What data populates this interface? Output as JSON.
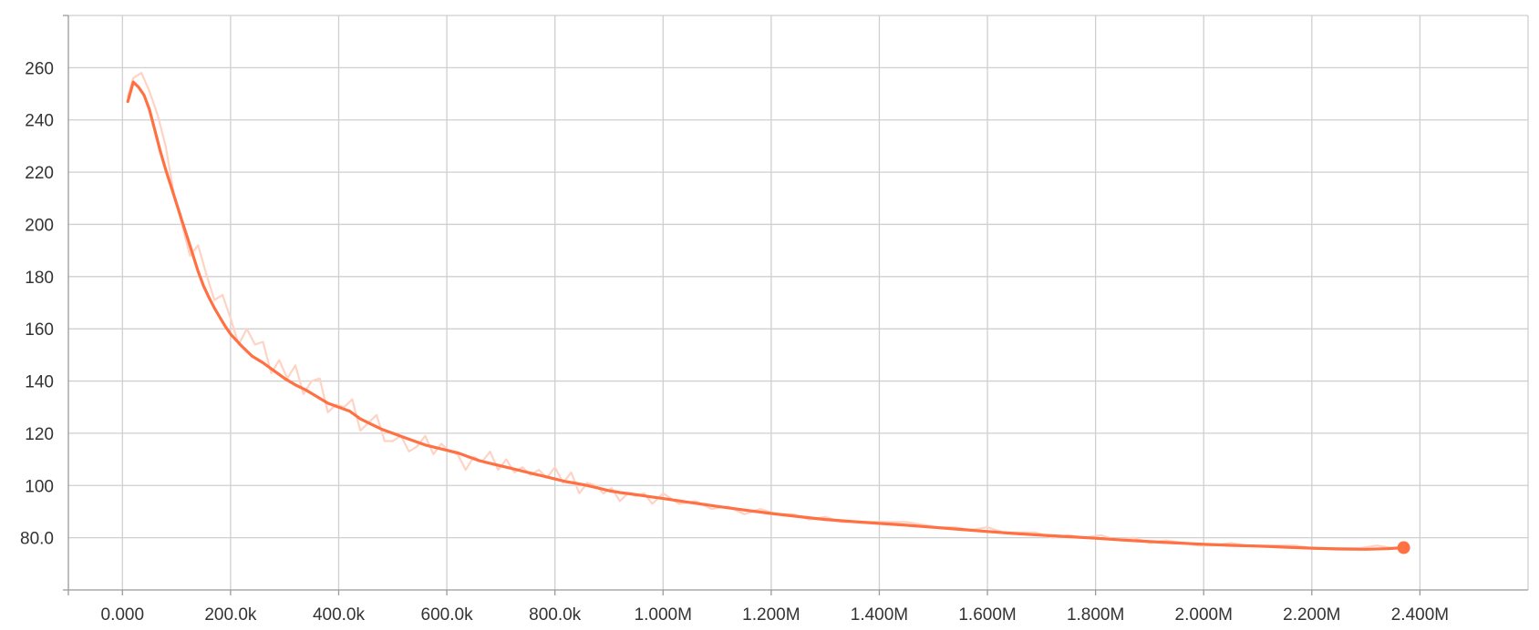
{
  "chart_data": {
    "type": "line",
    "title": "",
    "xlabel": "",
    "ylabel": "",
    "xlim": [
      -100000,
      2600000
    ],
    "ylim": [
      60,
      280
    ],
    "grid": true,
    "colors": {
      "smoothed": "#ff7043",
      "raw": "#ffd3c4",
      "grid": "#cfcfcf",
      "axis": "#9a9a9a",
      "text": "#333333"
    },
    "x_ticks": [
      {
        "value": 0,
        "label": "0.000"
      },
      {
        "value": 200000,
        "label": "200.0k"
      },
      {
        "value": 400000,
        "label": "400.0k"
      },
      {
        "value": 600000,
        "label": "600.0k"
      },
      {
        "value": 800000,
        "label": "800.0k"
      },
      {
        "value": 1000000,
        "label": "1.000M"
      },
      {
        "value": 1200000,
        "label": "1.200M"
      },
      {
        "value": 1400000,
        "label": "1.400M"
      },
      {
        "value": 1600000,
        "label": "1.600M"
      },
      {
        "value": 1800000,
        "label": "1.800M"
      },
      {
        "value": 2000000,
        "label": "2.000M"
      },
      {
        "value": 2200000,
        "label": "2.200M"
      },
      {
        "value": 2400000,
        "label": "2.400M"
      }
    ],
    "y_ticks": [
      {
        "value": 80,
        "label": "80.0"
      },
      {
        "value": 100,
        "label": "100"
      },
      {
        "value": 120,
        "label": "120"
      },
      {
        "value": 140,
        "label": "140"
      },
      {
        "value": 160,
        "label": "160"
      },
      {
        "value": 180,
        "label": "180"
      },
      {
        "value": 200,
        "label": "200"
      },
      {
        "value": 220,
        "label": "220"
      },
      {
        "value": 240,
        "label": "240"
      },
      {
        "value": 260,
        "label": "260"
      }
    ],
    "series": [
      {
        "kind": "raw",
        "x": [
          10000,
          20000,
          35000,
          50000,
          65000,
          80000,
          95000,
          110000,
          125000,
          140000,
          155000,
          170000,
          185000,
          200000,
          215000,
          230000,
          245000,
          260000,
          275000,
          290000,
          305000,
          320000,
          335000,
          350000,
          365000,
          380000,
          395000,
          410000,
          425000,
          440000,
          455000,
          470000,
          485000,
          500000,
          515000,
          530000,
          545000,
          560000,
          575000,
          590000,
          605000,
          620000,
          635000,
          650000,
          665000,
          680000,
          695000,
          710000,
          725000,
          740000,
          755000,
          770000,
          785000,
          800000,
          815000,
          830000,
          845000,
          860000,
          875000,
          890000,
          905000,
          920000,
          935000,
          950000,
          965000,
          980000,
          1000000,
          1030000,
          1060000,
          1090000,
          1120000,
          1150000,
          1180000,
          1210000,
          1240000,
          1270000,
          1300000,
          1330000,
          1360000,
          1390000,
          1420000,
          1450000,
          1480000,
          1510000,
          1540000,
          1570000,
          1600000,
          1630000,
          1660000,
          1690000,
          1720000,
          1750000,
          1780000,
          1810000,
          1840000,
          1870000,
          1900000,
          1930000,
          1960000,
          1990000,
          2020000,
          2050000,
          2080000,
          2110000,
          2140000,
          2170000,
          2200000,
          2230000,
          2260000,
          2290000,
          2320000,
          2350000,
          2370000
        ],
        "y": [
          249,
          256,
          258,
          251,
          242,
          230,
          212,
          200,
          188,
          192,
          181,
          171,
          173,
          164,
          154,
          160,
          154,
          155,
          143,
          148,
          141,
          146,
          135,
          140,
          141,
          128,
          131,
          130,
          133,
          121,
          124,
          127,
          117,
          117,
          119,
          113,
          115,
          119,
          112,
          116,
          113,
          112,
          106,
          111,
          109,
          113,
          106,
          110,
          105,
          107,
          104,
          106,
          103,
          107,
          101,
          105,
          97,
          101,
          100,
          97,
          99,
          94,
          97,
          96,
          97,
          93,
          97,
          93,
          94,
          91,
          92,
          89,
          91,
          89,
          89,
          87,
          88,
          86,
          86,
          86,
          86,
          86,
          85,
          84,
          84,
          83,
          84,
          82,
          82,
          82,
          80,
          81,
          80,
          81,
          79,
          80,
          78,
          79,
          78,
          77,
          77,
          78,
          77,
          77,
          77,
          77,
          76,
          76,
          76,
          76,
          77,
          76,
          76
        ]
      },
      {
        "kind": "smoothed",
        "x": [
          10000,
          20000,
          30000,
          40000,
          50000,
          60000,
          70000,
          80000,
          90000,
          100000,
          110000,
          120000,
          130000,
          140000,
          150000,
          160000,
          170000,
          180000,
          190000,
          200000,
          220000,
          240000,
          260000,
          280000,
          300000,
          320000,
          340000,
          360000,
          380000,
          400000,
          420000,
          440000,
          460000,
          480000,
          500000,
          520000,
          540000,
          560000,
          580000,
          600000,
          620000,
          640000,
          660000,
          680000,
          700000,
          720000,
          740000,
          760000,
          780000,
          800000,
          820000,
          840000,
          860000,
          880000,
          900000,
          920000,
          940000,
          960000,
          980000,
          1000000,
          1050000,
          1100000,
          1150000,
          1200000,
          1250000,
          1300000,
          1350000,
          1400000,
          1450000,
          1500000,
          1550000,
          1600000,
          1650000,
          1700000,
          1750000,
          1800000,
          1850000,
          1900000,
          1950000,
          2000000,
          2050000,
          2100000,
          2150000,
          2200000,
          2250000,
          2300000,
          2340000,
          2370000
        ],
        "y": [
          247,
          254.5,
          252.5,
          249.5,
          244,
          236,
          228,
          221,
          214.5,
          208,
          201.5,
          195,
          188.5,
          182,
          176.5,
          172,
          168,
          164.5,
          161,
          158,
          153.5,
          149.5,
          147,
          144,
          141,
          138.5,
          136.5,
          134,
          131.5,
          130,
          128.5,
          125.5,
          123.5,
          121.5,
          120,
          118.5,
          117,
          115.5,
          114.5,
          113.5,
          112.5,
          111,
          109.5,
          108.5,
          107.5,
          106.5,
          105.5,
          104.5,
          103.5,
          102.5,
          101.5,
          100.8,
          100,
          99,
          98,
          97.3,
          96.8,
          96.2,
          95.6,
          95,
          93.5,
          92,
          90.6,
          89.3,
          88.1,
          87,
          86.2,
          85.5,
          84.8,
          84,
          83.2,
          82.4,
          81.6,
          81,
          80.4,
          79.8,
          79.1,
          78.5,
          78,
          77.5,
          77.1,
          76.8,
          76.4,
          76,
          75.7,
          75.6,
          75.8,
          76.2
        ]
      }
    ]
  }
}
